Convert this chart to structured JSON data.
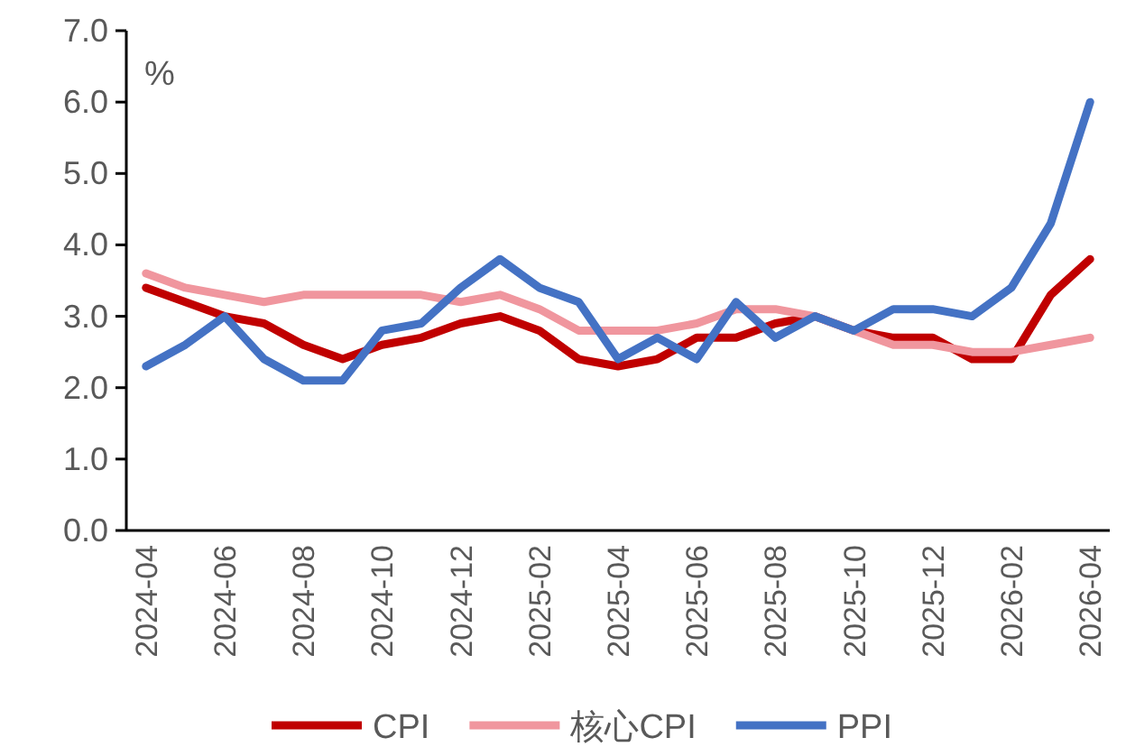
{
  "chart_data": {
    "type": "line",
    "ylabel": "%",
    "categories": [
      "2024-04",
      null,
      "2024-06",
      null,
      "2024-08",
      null,
      "2024-10",
      null,
      "2024-12",
      null,
      "2025-02",
      null,
      "2025-04",
      null,
      "2025-06",
      null,
      "2025-08",
      null,
      "2025-10",
      null,
      "2025-12",
      null,
      "2026-02",
      null,
      "2026-04"
    ],
    "series": [
      {
        "name": "CPI",
        "color": "#c00000",
        "values": [
          3.4,
          3.2,
          3.0,
          2.9,
          2.6,
          2.4,
          2.6,
          2.7,
          2.9,
          3.0,
          2.8,
          2.4,
          2.3,
          2.4,
          2.7,
          2.7,
          2.9,
          3.0,
          2.8,
          2.7,
          2.7,
          2.4,
          2.4,
          3.3,
          3.8
        ]
      },
      {
        "name": "核心CPI",
        "color": "#f0969e",
        "values": [
          3.6,
          3.4,
          3.3,
          3.2,
          3.3,
          3.3,
          3.3,
          3.3,
          3.2,
          3.3,
          3.1,
          2.8,
          2.8,
          2.8,
          2.9,
          3.1,
          3.1,
          3.0,
          2.8,
          2.6,
          2.6,
          2.5,
          2.5,
          2.6,
          2.7
        ]
      },
      {
        "name": "PPI",
        "color": "#4472c4",
        "values": [
          2.3,
          2.6,
          3.0,
          2.4,
          2.1,
          2.1,
          2.8,
          2.9,
          3.4,
          3.8,
          3.4,
          3.2,
          2.4,
          2.7,
          2.4,
          3.2,
          2.7,
          3.0,
          2.8,
          3.1,
          3.1,
          3.0,
          3.4,
          4.3,
          6.0
        ]
      }
    ],
    "ylim": [
      0,
      7
    ],
    "yticks": [
      {
        "value": 0,
        "label": "0.0"
      },
      {
        "value": 1,
        "label": "1.0"
      },
      {
        "value": 2,
        "label": "2.0"
      },
      {
        "value": 3,
        "label": "3.0"
      },
      {
        "value": 4,
        "label": "4.0"
      },
      {
        "value": 5,
        "label": "5.0"
      },
      {
        "value": 6,
        "label": "6.0"
      },
      {
        "value": 7,
        "label": "7.0"
      }
    ],
    "grid": false,
    "legend": "bottom",
    "marker": "none",
    "line_style": "solid"
  }
}
